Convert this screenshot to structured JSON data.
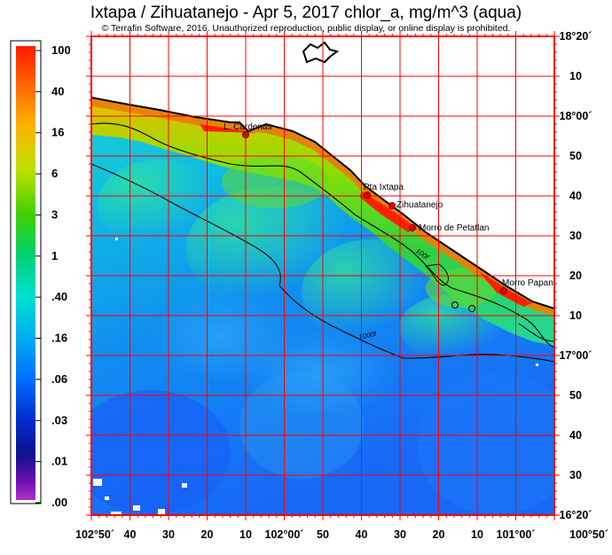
{
  "header": {
    "title": "Ixtapa / Zihuatanejo - Apr 5, 2017  chlor_a, mg/m^3 (aqua)",
    "copyright": "© Terrafin Software,  2016.  Unauthorized reproduction, public display, or online display is prohibited."
  },
  "color_scale": {
    "unit": "mg/m^3",
    "labels": [
      "100",
      "40",
      "16",
      "6",
      "3",
      "1",
      ".40",
      ".16",
      ".06",
      ".03",
      ".01",
      ".00"
    ],
    "colors": [
      "#ff0000",
      "#ff6600",
      "#ffb000",
      "#c8e000",
      "#6ad600",
      "#00d050",
      "#00e0c0",
      "#00b0e8",
      "#0070ff",
      "#0038e0",
      "#1010a0",
      "#6000a0",
      "#a020c0"
    ]
  },
  "axes": {
    "latitude_labels": [
      "18°20´",
      "10",
      "18°00´",
      "50",
      "40",
      "30",
      "20",
      "10",
      "17°00´",
      "50",
      "40",
      "30",
      "16°20´"
    ],
    "longitude_labels": [
      "102°50´",
      "40",
      "30",
      "20",
      "10",
      "102°00´",
      "50",
      "40",
      "30",
      "20",
      "10",
      "101°00´",
      "100°50´"
    ]
  },
  "places": [
    {
      "name": "L. Cardenas"
    },
    {
      "name": "Pta Ixtapa"
    },
    {
      "name": "Zihuatanejo"
    },
    {
      "name": "Morro de Petatlan"
    },
    {
      "name": "Morro Papan"
    }
  ],
  "contours": {
    "shallow": "100f",
    "deep": "1000f"
  },
  "colors": {
    "grid": "#ff0000",
    "frame": "#ff0000",
    "land": "#ffffff",
    "coast": "#000000"
  }
}
